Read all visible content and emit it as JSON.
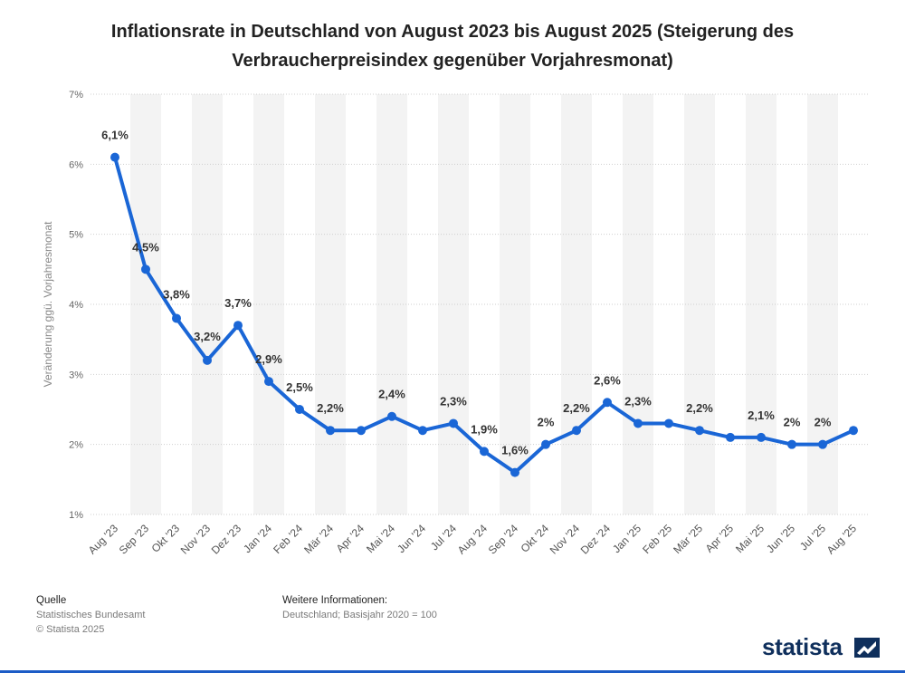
{
  "title": "Inflationsrate in Deutschland von August 2023 bis August 2025 (Steigerung des Verbraucherpreisindex gegenüber Vorjahresmonat)",
  "footer": {
    "source_heading": "Quelle",
    "source_lines": [
      "Statistisches Bundesamt",
      "© Statista 2025"
    ],
    "info_heading": "Weitere Informationen:",
    "info_lines": [
      "Deutschland; Basisjahr 2020 = 100"
    ]
  },
  "brand": {
    "name": "statista"
  },
  "colors": {
    "line": "#1a66d6",
    "band": "#f3f3f3",
    "grid": "#cfcfcf",
    "text": "#333333",
    "muted": "#8a8a8a",
    "accent_bar": "#1c5cc6"
  },
  "chart_data": {
    "type": "line",
    "title": "Inflationsrate in Deutschland von August 2023 bis August 2025 (Steigerung des Verbraucherpreisindex gegenüber Vorjahresmonat)",
    "ylabel": "Veränderung ggü. Vorjahresmonat",
    "xlabel": "",
    "ylim": [
      1,
      7
    ],
    "yticks": [
      "1%",
      "2%",
      "3%",
      "4%",
      "5%",
      "6%",
      "7%"
    ],
    "grid": true,
    "categories": [
      "Aug '23",
      "Sep '23",
      "Okt '23",
      "Nov '23",
      "Dez '23",
      "Jan '24",
      "Feb '24",
      "Mär '24",
      "Apr '24",
      "Mai '24",
      "Jun '24",
      "Jul '24",
      "Aug '24",
      "Sep '24",
      "Okt '24",
      "Nov '24",
      "Dez '24",
      "Jan '25",
      "Feb '25",
      "Mär '25",
      "Apr '25",
      "Mai '25",
      "Jun '25",
      "Jul '25",
      "Aug '25"
    ],
    "values": [
      6.1,
      4.5,
      3.8,
      3.2,
      3.7,
      2.9,
      2.5,
      2.2,
      2.2,
      2.4,
      2.2,
      2.3,
      1.9,
      1.6,
      2.0,
      2.2,
      2.6,
      2.3,
      2.3,
      2.2,
      2.1,
      2.1,
      2.0,
      2.0,
      2.2
    ],
    "data_labels": [
      "6,1%",
      "4,5%",
      "3,8%",
      "3,2%",
      "3,7%",
      "2,9%",
      "2,5%",
      "2,2%",
      null,
      "2,4%",
      null,
      "2,3%",
      "1,9%",
      "1,6%",
      "2%",
      "2,2%",
      "2,6%",
      "2,3%",
      null,
      "2,2%",
      null,
      "2,1%",
      "2%",
      "2%",
      null
    ]
  }
}
